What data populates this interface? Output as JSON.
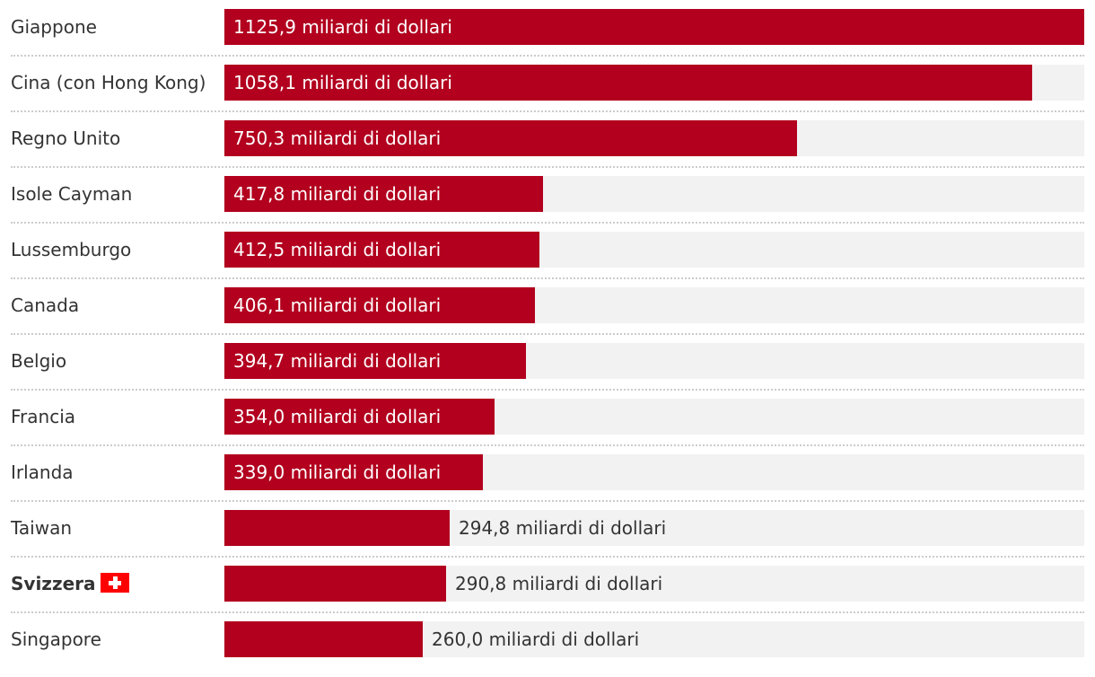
{
  "chart_data": {
    "type": "bar",
    "orientation": "horizontal",
    "unit_suffix": "miliardi di dollari",
    "xlim": [
      0,
      1125.9
    ],
    "bar_color": "#b2001e",
    "track_color": "#f2f2f2",
    "highlight_flag": "swiss-flag-icon",
    "categories": [
      "Giappone",
      "Cina (con Hong Kong)",
      "Regno Unito",
      "Isole Cayman",
      "Lussemburgo",
      "Canada",
      "Belgio",
      "Francia",
      "Irlanda",
      "Taiwan",
      "Svizzera",
      "Singapore"
    ],
    "values": [
      1125.9,
      1058.1,
      750.3,
      417.8,
      412.5,
      406.1,
      394.7,
      354.0,
      339.0,
      294.8,
      290.8,
      260.0
    ],
    "value_labels": [
      "1125,9 miliardi di dollari",
      "1058,1 miliardi di dollari",
      "750,3 miliardi di dollari",
      "417,8 miliardi di dollari",
      "412,5 miliardi di dollari",
      "406,1 miliardi di dollari",
      "394,7 miliardi di dollari",
      "354,0 miliardi di dollari",
      "339,0 miliardi di dollari",
      "294,8 miliardi di dollari",
      "290,8 miliardi di dollari",
      "260,0 miliardi di dollari"
    ],
    "highlighted": [
      false,
      false,
      false,
      false,
      false,
      false,
      false,
      false,
      false,
      false,
      true,
      false
    ]
  }
}
